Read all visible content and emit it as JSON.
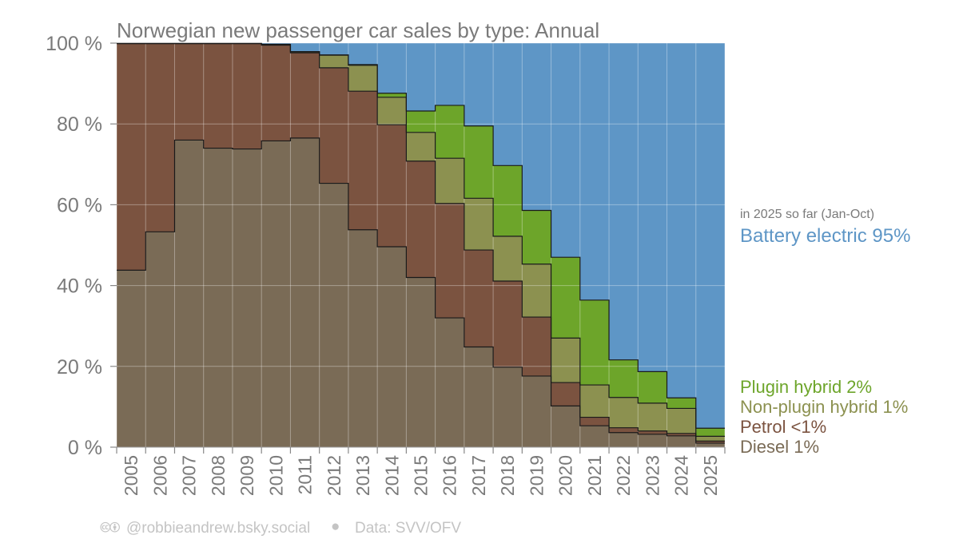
{
  "chart_data": {
    "type": "area",
    "title": "Norwegian new passenger car sales by type: Annual",
    "x": [
      "2005",
      "2006",
      "2007",
      "2008",
      "2009",
      "2010",
      "2011",
      "2012",
      "2013",
      "2014",
      "2015",
      "2016",
      "2017",
      "2018",
      "2019",
      "2020",
      "2021",
      "2022",
      "2023",
      "2024",
      "2025"
    ],
    "ylim": [
      0,
      100
    ],
    "yticks": [
      "0 %",
      "20 %",
      "40 %",
      "60 %",
      "80 %",
      "100 %"
    ],
    "stacked_order": [
      "Diesel",
      "Petrol",
      "Non-plugin hybrid",
      "Plugin hybrid",
      "Battery electric"
    ],
    "series": [
      {
        "name": "Diesel",
        "color": "#7a6b56",
        "values": [
          43.8,
          53.3,
          76,
          74,
          73.8,
          75.8,
          76.5,
          65.3,
          53.8,
          49.6,
          42,
          32,
          24.8,
          19.8,
          17.6,
          10.2,
          5.3,
          3.6,
          3.2,
          2.8,
          1
        ]
      },
      {
        "name": "Petrol",
        "color": "#7b5340",
        "values": [
          56.1,
          46.6,
          23.9,
          25.9,
          26.1,
          23.7,
          21.1,
          28.6,
          34.3,
          30.2,
          28.8,
          28.3,
          24,
          21.3,
          14.6,
          5.8,
          2.1,
          1.2,
          0.8,
          0.6,
          0.5
        ]
      },
      {
        "name": "Non-plugin hybrid",
        "color": "#8c9150",
        "values": [
          0,
          0,
          0,
          0,
          0,
          0.2,
          0.3,
          3.1,
          6.4,
          6.8,
          7.1,
          11.2,
          12.8,
          11.1,
          13.1,
          11,
          8,
          7.5,
          6.9,
          6.2,
          1.2
        ]
      },
      {
        "name": "Plugin hybrid",
        "color": "#6da52a",
        "values": [
          0,
          0,
          0,
          0,
          0,
          0,
          0,
          0.1,
          0.2,
          1,
          5.3,
          13.1,
          17.9,
          17.5,
          13.3,
          20,
          21,
          9.3,
          7.8,
          2.6,
          2
        ]
      },
      {
        "name": "Battery electric",
        "color": "#5e96c6",
        "values": [
          0.1,
          0.1,
          0.1,
          0.1,
          0.1,
          0.3,
          2.1,
          2.9,
          5.3,
          12.4,
          16.8,
          15.4,
          20.5,
          30.3,
          41.4,
          53,
          63.6,
          78.4,
          81.3,
          87.8,
          95.3
        ]
      }
    ],
    "legend": {
      "note": "in 2025 so far (Jan-Oct)",
      "entries": [
        {
          "label": "Battery electric 95%",
          "color": "#5e96c6"
        },
        {
          "label": "Plugin hybrid 2%",
          "color": "#6da52a"
        },
        {
          "label": "Non-plugin hybrid 1%",
          "color": "#8c9150"
        },
        {
          "label": "Petrol <1%",
          "color": "#7b5340"
        },
        {
          "label": "Diesel 1%",
          "color": "#7a6b56"
        }
      ]
    },
    "grid": true,
    "legend_placement": "right"
  },
  "credit": {
    "cc_icons": "🅭🅯",
    "handle": "@robbieandrew.bsky.social",
    "separator": "●",
    "source": "Data: SVV/OFV"
  }
}
